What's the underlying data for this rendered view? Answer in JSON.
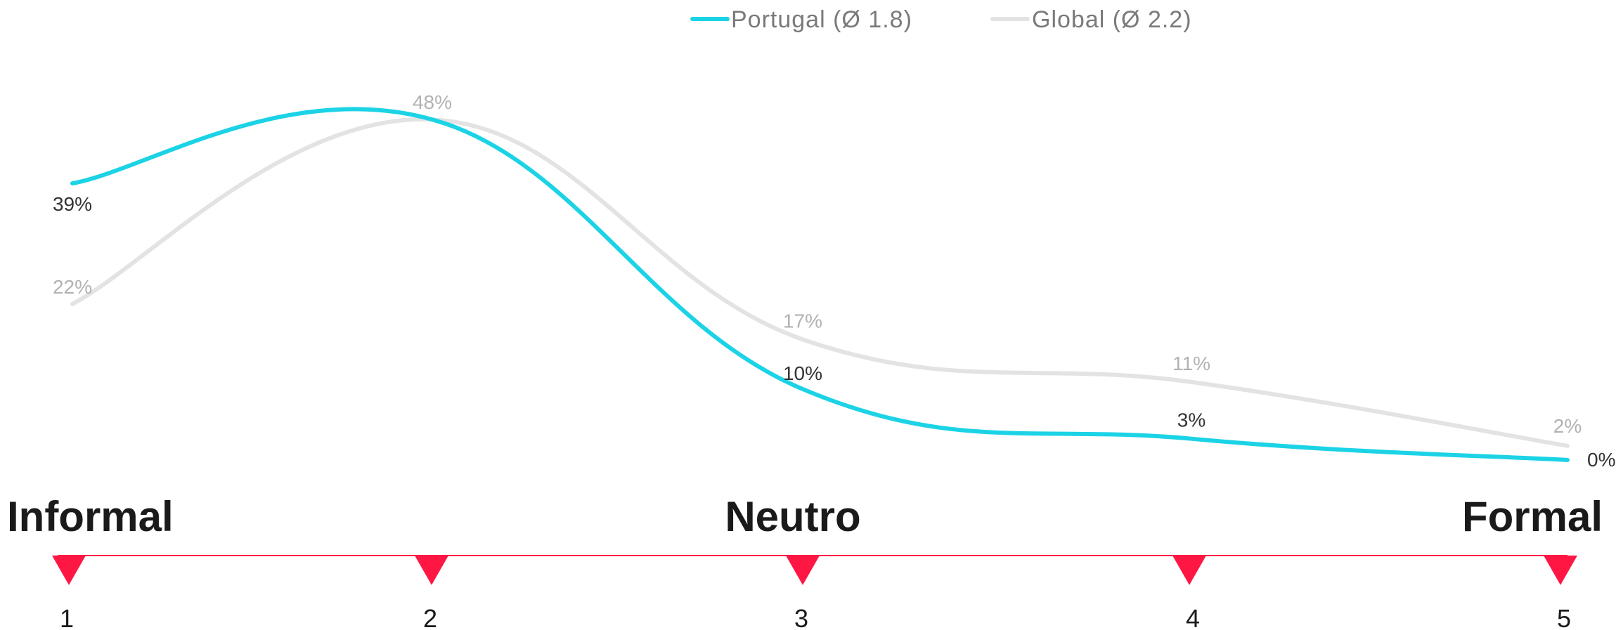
{
  "chart_data": {
    "type": "line",
    "x": [
      1,
      2,
      3,
      4,
      5
    ],
    "series": [
      {
        "name": "Portugal (Ø 1.8)",
        "color": "#1cd3e6",
        "values": [
          39,
          48,
          10,
          3,
          0
        ],
        "labels": [
          "39%",
          "48%",
          "10%",
          "3%",
          "0%"
        ]
      },
      {
        "name": "Global (Ø 2.2)",
        "color": "#e3e3e3",
        "values": [
          22,
          48,
          17,
          11,
          2
        ],
        "labels": [
          "22%",
          "48%",
          "17%",
          "11%",
          "2%"
        ]
      }
    ],
    "label_colors": {
      "Portugal": "#333333",
      "Global": "#b2b2b2"
    },
    "scale_words": {
      "left": "Informal",
      "center": "Neutro",
      "right": "Formal"
    },
    "tick_labels": [
      "1",
      "2",
      "3",
      "4",
      "5"
    ],
    "axis_color": "#ff1744",
    "ylim": [
      0,
      50
    ]
  }
}
